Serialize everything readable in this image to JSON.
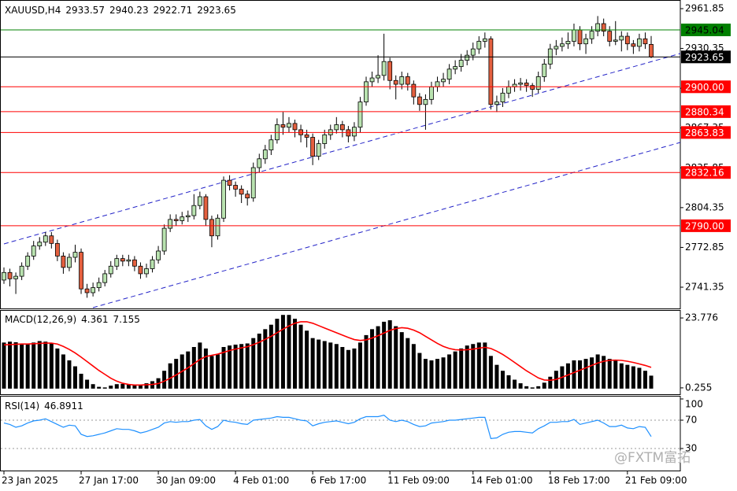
{
  "chart_data": [
    {
      "type": "candlestick",
      "title": "XAUUSD,H4",
      "categories": [
        "23 Jan 2025",
        null,
        null,
        null,
        null,
        null,
        null,
        null,
        null,
        null,
        null,
        null,
        null,
        "27 Jan 17:00",
        null,
        null,
        null,
        null,
        null,
        null,
        null,
        null,
        null,
        null,
        null,
        null,
        "30 Jan 09:00",
        null,
        null,
        null,
        null,
        null,
        null,
        null,
        null,
        null,
        null,
        null,
        null,
        "4 Feb 01:00",
        null,
        null,
        null,
        null,
        null,
        null,
        null,
        null,
        null,
        null,
        null,
        null,
        "6 Feb 17:00",
        null,
        null,
        null,
        null,
        null,
        null,
        null,
        null,
        null,
        null,
        null,
        null,
        "11 Feb 09:00",
        null,
        null,
        null,
        null,
        null,
        null,
        null,
        null,
        null,
        null,
        null,
        null,
        null,
        "14 Feb 01:00",
        null,
        null,
        null,
        null,
        null,
        null,
        null,
        null,
        null,
        null,
        null,
        null,
        "18 Feb 17:00",
        null,
        null,
        null,
        null,
        null,
        null,
        null,
        null,
        null,
        null,
        null,
        null,
        "21 Feb 09:00",
        null,
        null,
        null,
        null
      ],
      "open": [
        2747,
        2753,
        2748,
        2750,
        2758,
        2766,
        2774,
        2777,
        2782,
        2776,
        2766,
        2757,
        2765,
        2769,
        2740,
        2737,
        2741,
        2745,
        2752,
        2758,
        2764,
        2762,
        2763,
        2758,
        2752,
        2756,
        2763,
        2770,
        2788,
        2795,
        2794,
        2797,
        2798,
        2806,
        2813,
        2795,
        2782,
        2796,
        2826,
        2822,
        2819,
        2815,
        2812,
        2836,
        2843,
        2850,
        2858,
        2870,
        2868,
        2871,
        2866,
        2862,
        2860,
        2845,
        2855,
        2862,
        2866,
        2870,
        2866,
        2861,
        2868,
        2888,
        2904,
        2907,
        2909,
        2920,
        2905,
        2902,
        2908,
        2902,
        2892,
        2886,
        2890,
        2900,
        2904,
        2906,
        2914,
        2916,
        2921,
        2925,
        2930,
        2936,
        2938,
        2886,
        2888,
        2895,
        2900,
        2902,
        2903,
        2901,
        2898,
        2908,
        2918,
        2930,
        2932,
        2934,
        2936,
        2945,
        2934,
        2938,
        2944,
        2950,
        2944,
        2936,
        2937,
        2940,
        2934,
        2932,
        2938,
        2933.57
      ],
      "high": [
        2757,
        2756,
        2753,
        2761,
        2769,
        2778,
        2781,
        2785,
        2785,
        2779,
        2769,
        2768,
        2775,
        2772,
        2744,
        2745,
        2749,
        2755,
        2762,
        2767,
        2767,
        2767,
        2766,
        2761,
        2760,
        2766,
        2774,
        2791,
        2799,
        2799,
        2801,
        2802,
        2815,
        2817,
        2815,
        2798,
        2799,
        2829,
        2830,
        2825,
        2822,
        2818,
        2840,
        2847,
        2854,
        2862,
        2875,
        2880,
        2876,
        2874,
        2870,
        2866,
        2863,
        2858,
        2866,
        2870,
        2876,
        2873,
        2869,
        2872,
        2892,
        2908,
        2912,
        2925,
        2942,
        2923,
        2909,
        2912,
        2911,
        2905,
        2895,
        2894,
        2904,
        2908,
        2911,
        2918,
        2921,
        2926,
        2929,
        2935,
        2940,
        2943,
        2940,
        2893,
        2899,
        2905,
        2906,
        2907,
        2906,
        2903,
        2912,
        2922,
        2934,
        2937,
        2939,
        2943,
        2950,
        2948,
        2942,
        2948,
        2956,
        2954,
        2948,
        2952,
        2944,
        2943,
        2937,
        2942,
        2943,
        2940.23
      ],
      "low": [
        2744,
        2742,
        2736,
        2747,
        2755,
        2763,
        2771,
        2774,
        2772,
        2762,
        2752,
        2754,
        2761,
        2736,
        2733,
        2734,
        2738,
        2742,
        2749,
        2755,
        2758,
        2758,
        2754,
        2748,
        2749,
        2753,
        2760,
        2767,
        2785,
        2790,
        2791,
        2793,
        2795,
        2803,
        2790,
        2773,
        2779,
        2793,
        2818,
        2813,
        2808,
        2806,
        2809,
        2832,
        2839,
        2846,
        2855,
        2862,
        2864,
        2860,
        2856,
        2852,
        2838,
        2842,
        2851,
        2858,
        2863,
        2860,
        2856,
        2857,
        2864,
        2885,
        2900,
        2903,
        2905,
        2898,
        2890,
        2898,
        2897,
        2886,
        2881,
        2866,
        2886,
        2896,
        2900,
        2902,
        2910,
        2912,
        2917,
        2921,
        2926,
        2931,
        2882,
        2880,
        2884,
        2891,
        2896,
        2897,
        2896,
        2892,
        2895,
        2904,
        2914,
        2925,
        2928,
        2930,
        2932,
        2929,
        2926,
        2934,
        2940,
        2940,
        2932,
        2933,
        2928,
        2929,
        2926,
        2928,
        2930,
        2922.71
      ],
      "close": [
        2753,
        2748,
        2750,
        2758,
        2766,
        2774,
        2777,
        2782,
        2776,
        2766,
        2757,
        2765,
        2769,
        2740,
        2737,
        2741,
        2745,
        2752,
        2758,
        2764,
        2762,
        2763,
        2758,
        2752,
        2756,
        2763,
        2770,
        2788,
        2795,
        2794,
        2797,
        2798,
        2806,
        2813,
        2795,
        2782,
        2796,
        2826,
        2822,
        2819,
        2815,
        2812,
        2836,
        2843,
        2850,
        2858,
        2870,
        2868,
        2871,
        2866,
        2862,
        2860,
        2845,
        2855,
        2862,
        2866,
        2870,
        2866,
        2861,
        2868,
        2888,
        2904,
        2907,
        2909,
        2920,
        2905,
        2902,
        2908,
        2902,
        2892,
        2886,
        2890,
        2900,
        2904,
        2906,
        2914,
        2916,
        2921,
        2925,
        2930,
        2936,
        2938,
        2886,
        2888,
        2895,
        2900,
        2902,
        2903,
        2901,
        2898,
        2908,
        2918,
        2930,
        2932,
        2934,
        2936,
        2945,
        2934,
        2938,
        2944,
        2950,
        2944,
        2936,
        2937,
        2940,
        2934,
        2932,
        2938,
        2934,
        2923.65
      ],
      "up_color": "#b9e3b0",
      "down_color": "#e4603f",
      "ylim": [
        2724.53,
        2968.08
      ],
      "yticks": [
        2961.85,
        2930.35,
        2898.85,
        2867.35,
        2835.85,
        2804.35,
        2772.85,
        2741.35
      ],
      "levels": [
        {
          "value": 2945.04,
          "color": "#008000",
          "text_color": "#000000"
        },
        {
          "value": 2923.65,
          "color": "#000000",
          "text_color": "#ffffff"
        },
        {
          "value": 2900,
          "label": "2900.00",
          "color": "#ff0000",
          "text_color": "#ffffff"
        },
        {
          "value": 2880.34,
          "color": "#ff0000",
          "text_color": "#ffffff"
        },
        {
          "value": 2863.83,
          "color": "#ff0000",
          "text_color": "#ffffff"
        },
        {
          "value": 2832.16,
          "color": "#ff0000",
          "text_color": "#ffffff"
        },
        {
          "value": 2790,
          "label": "2790.00",
          "color": "#ff0000",
          "text_color": "#ffffff"
        }
      ]
    },
    {
      "type": "macd",
      "title": "MACD(12,26,9)",
      "histogram": [
        15.5,
        15.8,
        15.6,
        15.2,
        15.0,
        15.5,
        16.0,
        15.8,
        15.2,
        13.5,
        11.5,
        9.5,
        7.5,
        5.0,
        3.0,
        1.5,
        0.6,
        0.4,
        1.0,
        1.5,
        1.6,
        1.5,
        1.2,
        1.3,
        1.8,
        2.5,
        3.5,
        6.0,
        8.5,
        10.0,
        11.5,
        12.5,
        14.0,
        15.5,
        13.5,
        11.0,
        11.5,
        14.0,
        14.5,
        14.8,
        15.0,
        15.2,
        17.0,
        18.5,
        20.0,
        21.5,
        23.5,
        24.8,
        24.8,
        23.5,
        21.5,
        19.5,
        17.0,
        16.5,
        16.0,
        15.5,
        15.0,
        14.0,
        13.0,
        13.5,
        15.5,
        18.0,
        20.0,
        21.0,
        22.5,
        23.0,
        21.0,
        19.0,
        17.0,
        15.0,
        12.0,
        10.0,
        9.5,
        10.0,
        10.5,
        11.5,
        12.5,
        13.5,
        14.5,
        15.0,
        15.5,
        15.5,
        11.0,
        8.0,
        6.0,
        4.5,
        3.0,
        1.8,
        0.8,
        0.4,
        0.8,
        2.0,
        4.0,
        6.0,
        7.5,
        8.5,
        9.5,
        9.5,
        10.0,
        10.5,
        11.5,
        11.0,
        10.0,
        9.5,
        8.5,
        8.0,
        7.5,
        7.0,
        6.0,
        4.361
      ],
      "signal": [
        14.7,
        14.8,
        14.9,
        15.0,
        15.0,
        15.1,
        15.2,
        15.3,
        15.3,
        15.0,
        14.2,
        13.2,
        12.0,
        10.6,
        9.1,
        7.6,
        6.1,
        4.8,
        3.5,
        2.5,
        1.8,
        1.4,
        1.2,
        1.2,
        1.3,
        1.4,
        1.7,
        2.5,
        3.5,
        4.6,
        5.8,
        7.0,
        8.4,
        9.8,
        10.8,
        11.2,
        11.6,
        12.2,
        12.8,
        13.3,
        13.7,
        14.1,
        14.8,
        15.6,
        16.6,
        17.6,
        18.8,
        20.0,
        21.1,
        22.0,
        22.5,
        22.5,
        22.0,
        21.2,
        20.4,
        19.6,
        18.8,
        18.0,
        17.2,
        16.5,
        16.2,
        16.4,
        17.0,
        17.8,
        18.7,
        19.6,
        20.2,
        20.5,
        20.3,
        19.7,
        18.8,
        17.6,
        16.4,
        15.2,
        14.2,
        13.5,
        13.1,
        13.0,
        13.1,
        13.3,
        13.6,
        13.9,
        13.5,
        12.6,
        11.5,
        10.2,
        8.8,
        7.4,
        6.0,
        4.8,
        3.6,
        2.9,
        2.8,
        3.1,
        3.8,
        4.6,
        5.4,
        6.2,
        7.0,
        7.8,
        8.6,
        9.2,
        9.5,
        9.6,
        9.5,
        9.2,
        8.8,
        8.3,
        7.8,
        7.155
      ],
      "histogram_color": "#000000",
      "signal_color": "#ff0000",
      "ylim": [
        -2.15,
        26.18
      ],
      "yticks": [
        23.776,
        0.255
      ]
    },
    {
      "type": "rsi",
      "title": "RSI(14)",
      "values": [
        66,
        64,
        60,
        62,
        66,
        69,
        70,
        72,
        68,
        64,
        60,
        63,
        62,
        50,
        47,
        48,
        50,
        52,
        55,
        58,
        57,
        57,
        55,
        52,
        54,
        57,
        60,
        66,
        68,
        67,
        68,
        68,
        70,
        71,
        62,
        57,
        61,
        70,
        68,
        67,
        65,
        64,
        70,
        71,
        72,
        73,
        75,
        74,
        74,
        72,
        70,
        69,
        62,
        65,
        67,
        68,
        69,
        67,
        65,
        67,
        72,
        75,
        75,
        75,
        77,
        70,
        68,
        70,
        68,
        64,
        61,
        62,
        66,
        67,
        68,
        70,
        70,
        71,
        72,
        73,
        74,
        74,
        44,
        45,
        50,
        53,
        54,
        54,
        53,
        52,
        58,
        62,
        67,
        67,
        68,
        68,
        71,
        64,
        66,
        68,
        70,
        66,
        61,
        61,
        63,
        59,
        58,
        61,
        60,
        46.8911
      ],
      "color": "#1e90ff",
      "ylim": [
        0,
        100
      ],
      "yticks": [
        100,
        70,
        30
      ]
    }
  ],
  "watermark": "@FXTM富拓"
}
